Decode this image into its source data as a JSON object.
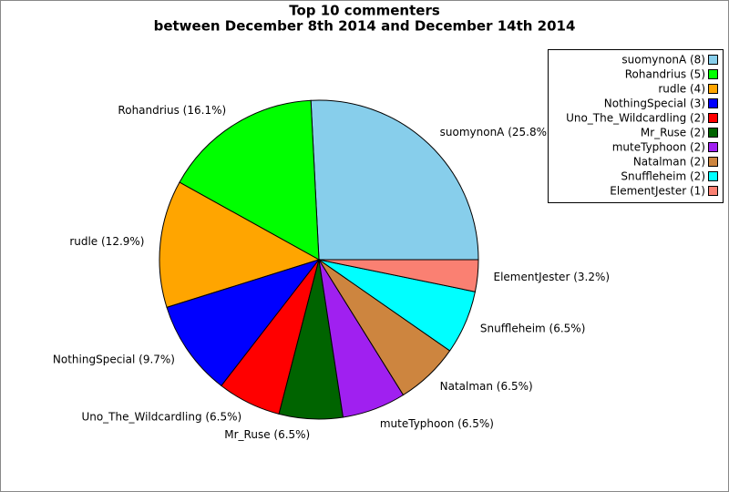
{
  "chart_data": {
    "type": "pie",
    "title": "Top 10 commenters",
    "subtitle": "between December 8th 2014 and December 14th 2014",
    "categories": [
      "suomynonA",
      "Rohandrius",
      "rudle",
      "NothingSpecial",
      "Uno_The_Wildcardling",
      "Mr_Ruse",
      "muteTyphoon",
      "Natalman",
      "Snuffleheim",
      "ElementJester"
    ],
    "values": [
      8,
      5,
      4,
      3,
      2,
      2,
      2,
      2,
      2,
      1
    ],
    "value_labels": [
      "suomynonA (25.8%)",
      "Rohandrius (16.1%)",
      "rudle (12.9%)",
      "NothingSpecial (9.7%)",
      "Uno_The_Wildcardling (6.5%)",
      "Mr_Ruse (6.5%)",
      "muteTyphoon (6.5%)",
      "Natalman (6.5%)",
      "Snuffleheim (6.5%)",
      "ElementJester (3.2%)"
    ],
    "legend_labels": [
      "suomynonA (8)",
      "Rohandrius (5)",
      "rudle (4)",
      "NothingSpecial (3)",
      "Uno_The_Wildcardling (2)",
      "Mr_Ruse (2)",
      "muteTyphoon (2)",
      "Natalman (2)",
      "Snuffleheim (2)",
      "ElementJester (1)"
    ],
    "colors": [
      "#87ceeb",
      "#00ff00",
      "#ffa500",
      "#0000ff",
      "#ff0000",
      "#006400",
      "#a020f0",
      "#cd853f",
      "#00ffff",
      "#fa8072"
    ],
    "legend_position": "upper right"
  }
}
